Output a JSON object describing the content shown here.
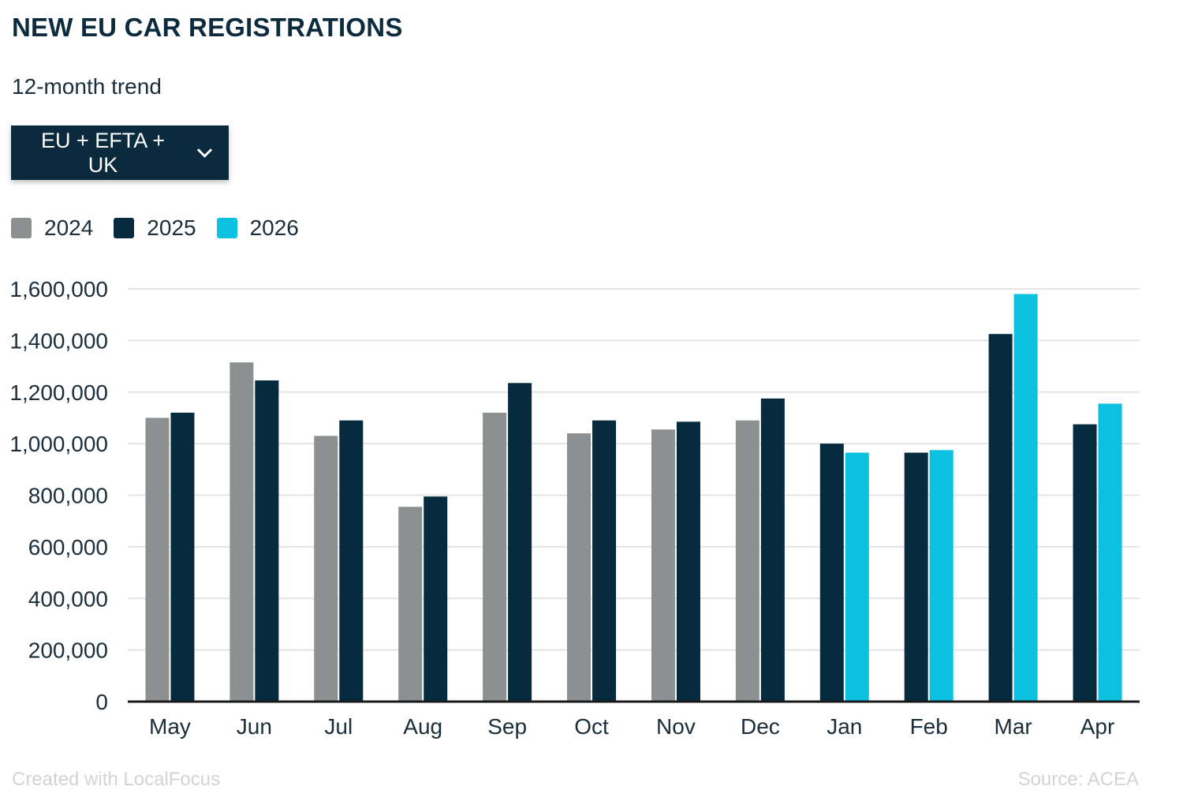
{
  "header": {
    "title": "NEW EU CAR REGISTRATIONS",
    "subtitle": "12-month trend"
  },
  "region_select": {
    "selected": "EU + EFTA + UK",
    "icon": "chevron-down-icon"
  },
  "colors": {
    "2024": "#8c9091",
    "2025": "#062b3f",
    "2026": "#0cc0df",
    "grid": "#e4e4e4",
    "axis": "#1a1a1a",
    "text": "#1a2e3b"
  },
  "footer": {
    "created_with": "Created with LocalFocus",
    "source": "Source:  ACEA"
  },
  "chart_data": {
    "type": "bar",
    "categories": [
      "May",
      "Jun",
      "Jul",
      "Aug",
      "Sep",
      "Oct",
      "Nov",
      "Dec",
      "Jan",
      "Feb",
      "Mar",
      "Apr"
    ],
    "series": [
      {
        "name": "2024",
        "values": [
          1100000,
          1315000,
          1030000,
          755000,
          1120000,
          1040000,
          1055000,
          1090000,
          null,
          null,
          null,
          null
        ]
      },
      {
        "name": "2025",
        "values": [
          1120000,
          1245000,
          1090000,
          795000,
          1235000,
          1090000,
          1085000,
          1175000,
          1000000,
          965000,
          1425000,
          1075000
        ]
      },
      {
        "name": "2026",
        "values": [
          null,
          null,
          null,
          null,
          null,
          null,
          null,
          null,
          965000,
          975000,
          1580000,
          1155000
        ]
      }
    ],
    "ylim": [
      0,
      1600000
    ],
    "yticks": [
      0,
      200000,
      400000,
      600000,
      800000,
      1000000,
      1200000,
      1400000,
      1600000
    ],
    "ytick_labels": [
      "0",
      "200,000",
      "400,000",
      "600,000",
      "800,000",
      "1,000,000",
      "1,200,000",
      "1,400,000",
      "1,600,000"
    ],
    "grid": true,
    "legend_position": "top-left"
  }
}
